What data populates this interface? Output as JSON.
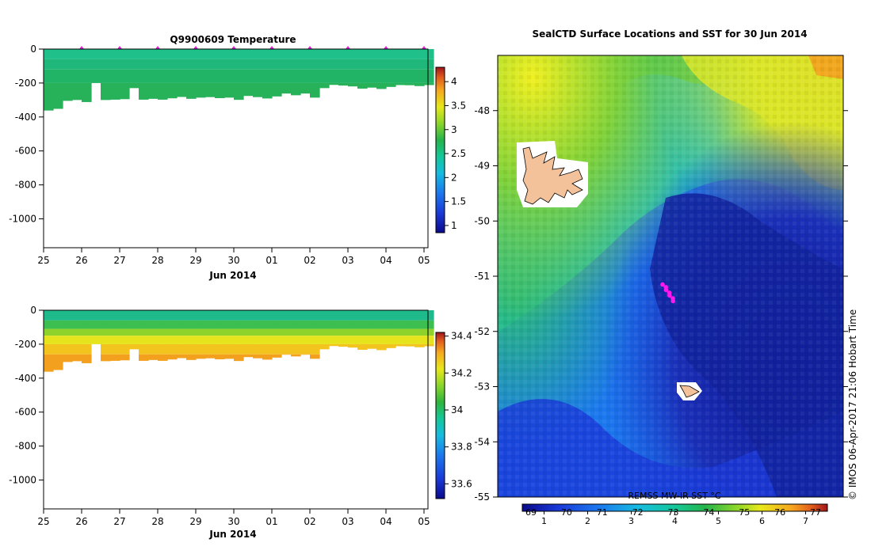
{
  "chart_data": [
    {
      "type": "heatmap",
      "title": "Q9900609  Temperature",
      "xlabel": "Jun 2014",
      "x_ticks": [
        "25",
        "26",
        "27",
        "28",
        "29",
        "30",
        "01",
        "02",
        "03",
        "04",
        "05"
      ],
      "y_ticks": [
        "0",
        "-200",
        "-400",
        "-600",
        "-800",
        "-1000"
      ],
      "ylim": [
        -1170,
        0
      ],
      "colorbar_ticks": [
        "4",
        "3.5",
        "3",
        "2.5",
        "2",
        "1.5",
        "1"
      ],
      "colorbar_range": [
        0.85,
        4.3
      ],
      "colors": [
        "#0a0a8c",
        "#1a3ad8",
        "#1b78ee",
        "#15bce0",
        "#14c89a",
        "#24b44a",
        "#2db63c",
        "#8ad62a",
        "#e8e81a",
        "#f6a81e",
        "#e05a1c",
        "#a0141a"
      ],
      "fill_value": 2.7,
      "profile_depth": [
        -362,
        -352,
        -305,
        -300,
        -312,
        -200,
        -300,
        -298,
        -295,
        -230,
        -298,
        -293,
        -298,
        -290,
        -282,
        -293,
        -286,
        -283,
        -289,
        -286,
        -299,
        -276,
        -283,
        -291,
        -279,
        -262,
        -272,
        -262,
        -286,
        -230,
        -211,
        -215,
        -220,
        -233,
        -227,
        -235,
        -223,
        -212,
        -213,
        -218,
        -212
      ]
    },
    {
      "type": "heatmap",
      "title": "",
      "xlabel": "Jun 2014",
      "x_ticks": [
        "25",
        "26",
        "27",
        "28",
        "29",
        "30",
        "01",
        "02",
        "03",
        "04",
        "05"
      ],
      "y_ticks": [
        "0",
        "-200",
        "-400",
        "-600",
        "-800",
        "-1000"
      ],
      "ylim": [
        -1170,
        0
      ],
      "colorbar_ticks": [
        "34.4",
        "34.2",
        "34",
        "33.8",
        "33.6"
      ],
      "colorbar_range": [
        33.52,
        34.42
      ]
    },
    {
      "type": "heatmap",
      "title": "SealCTD Surface Locations and SST for 30 Jun 2014",
      "y_ticks": [
        "-48",
        "-49",
        "-50",
        "-51",
        "-52",
        "-53",
        "-54",
        "-55"
      ],
      "ylim": [
        -55,
        -47
      ],
      "colorbar_label": "REMSS MW-IR SST °C",
      "colorbar_upper_ticks": [
        "69",
        "70",
        "71",
        "72",
        "73",
        "74",
        "75",
        "76",
        "77"
      ],
      "colorbar_lower_ticks": [
        "1",
        "2",
        "3",
        "4",
        "5",
        "6",
        "7"
      ],
      "colorbar_range": [
        0.5,
        7.5
      ],
      "seal_track_lat": [
        -51.15,
        -51.2,
        -51.25,
        -51.3,
        -51.35,
        -51.4,
        -51.45
      ]
    }
  ],
  "watermark": "© IMOS 06-Apr-2017 21:06 Hobart Time"
}
